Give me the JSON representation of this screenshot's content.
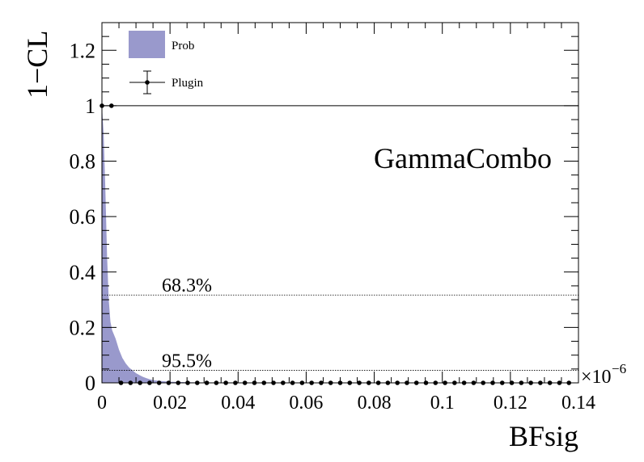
{
  "chart_data": {
    "type": "area",
    "title": "",
    "xlabel": "BFsig",
    "ylabel": "1−CL",
    "x_multiplier_label": "×10",
    "x_multiplier_exponent": "−6",
    "xlim": [
      0,
      0.14
    ],
    "ylim": [
      0,
      1.3
    ],
    "x_ticks": [
      0,
      0.02,
      0.04,
      0.06,
      0.08,
      0.1,
      0.12,
      0.14
    ],
    "x_tick_labels": [
      "0",
      "0.02",
      "0.04",
      "0.06",
      "0.08",
      "0.1",
      "0.12",
      "0.14"
    ],
    "y_ticks": [
      0,
      0.2,
      0.4,
      0.6,
      0.8,
      1,
      1.2
    ],
    "y_tick_labels": [
      "0",
      "0.2",
      "0.4",
      "0.6",
      "0.8",
      "1",
      "1.2"
    ],
    "watermark": "GammaCombo",
    "reference_lines": [
      {
        "y": 0.317,
        "label": "68.3%"
      },
      {
        "y": 0.045,
        "label": "95.5%"
      }
    ],
    "legend": {
      "placement": "top-left",
      "entries": [
        {
          "name": "Prob",
          "style": "fill"
        },
        {
          "name": "Plugin",
          "style": "marker-errorbar"
        }
      ]
    },
    "series": [
      {
        "name": "Prob",
        "kind": "area",
        "color": "#9999cc",
        "x": [
          0,
          0.0005,
          0.001,
          0.0015,
          0.002,
          0.0025,
          0.003,
          0.004,
          0.005,
          0.006,
          0.007,
          0.008,
          0.009,
          0.01,
          0.011,
          0.012,
          0.013,
          0.014,
          0.015,
          0.017,
          0.02,
          0.025,
          0.03,
          0.04,
          0.06,
          0.1,
          0.14
        ],
        "y": [
          1.0,
          0.9,
          0.7,
          0.46,
          0.3,
          0.22,
          0.19,
          0.16,
          0.12,
          0.09,
          0.07,
          0.055,
          0.045,
          0.035,
          0.028,
          0.022,
          0.017,
          0.013,
          0.01,
          0.007,
          0.004,
          0.002,
          0.001,
          0.0005,
          0.0002,
          0,
          0
        ]
      },
      {
        "name": "Plugin",
        "kind": "scatter",
        "color": "#000000",
        "x": [
          0,
          0.0028,
          0.0056,
          0.0084,
          0.0112,
          0.014,
          0.0168,
          0.0196,
          0.0224,
          0.0252,
          0.028,
          0.0308,
          0.0336,
          0.0364,
          0.0392,
          0.042,
          0.0448,
          0.0476,
          0.0504,
          0.0532,
          0.056,
          0.0588,
          0.0616,
          0.0644,
          0.0672,
          0.07,
          0.0728,
          0.0756,
          0.0784,
          0.0812,
          0.084,
          0.0868,
          0.0896,
          0.0924,
          0.0952,
          0.098,
          0.1008,
          0.1036,
          0.1064,
          0.1092,
          0.112,
          0.1148,
          0.1176,
          0.1204,
          0.1232,
          0.126,
          0.1288,
          0.1316,
          0.1344,
          0.1372
        ],
        "y": [
          1,
          1,
          0,
          0,
          0,
          0,
          0,
          0,
          0,
          0,
          0,
          0,
          0,
          0,
          0,
          0,
          0,
          0,
          0,
          0,
          0,
          0,
          0,
          0,
          0,
          0,
          0,
          0,
          0,
          0,
          0,
          0,
          0,
          0,
          0,
          0,
          0,
          0,
          0,
          0,
          0,
          0,
          0,
          0,
          0,
          0,
          0,
          0,
          0,
          0
        ]
      }
    ]
  }
}
